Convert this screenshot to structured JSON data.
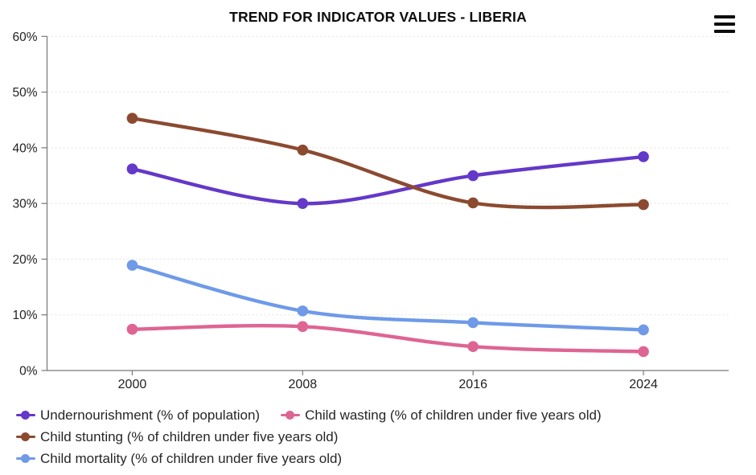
{
  "chart_data": {
    "type": "line",
    "subtype": "spline",
    "title": "TREND FOR INDICATOR VALUES - LIBERIA",
    "categories": [
      "2000",
      "2008",
      "2016",
      "2024"
    ],
    "series": [
      {
        "name": "Undernourishment (% of population)",
        "color": "#6438c8",
        "values": [
          36.2,
          30.0,
          35.0,
          38.4
        ]
      },
      {
        "name": "Child wasting (% of children under five years old)",
        "color": "#de6593",
        "values": [
          7.4,
          7.9,
          4.3,
          3.4
        ]
      },
      {
        "name": "Child stunting (% of children under five years old)",
        "color": "#8b4a30",
        "values": [
          45.3,
          39.6,
          30.1,
          29.8
        ]
      },
      {
        "name": "Child mortality (% of children under five years old)",
        "color": "#6e9ae8",
        "values": [
          18.9,
          10.7,
          8.6,
          7.3
        ]
      }
    ],
    "xlabel": "",
    "ylabel": "",
    "ylim": [
      0,
      60
    ],
    "ytick_step": 10,
    "ytick_suffix": "%",
    "grid": true,
    "legend_position": "bottom-left"
  },
  "controls": {
    "context_menu_tooltip": "Chart context menu"
  },
  "style": {
    "grid_color": "#e0e0e0",
    "axis_color": "#777777",
    "label_color": "#222222",
    "title_color": "#0d0d0d"
  }
}
